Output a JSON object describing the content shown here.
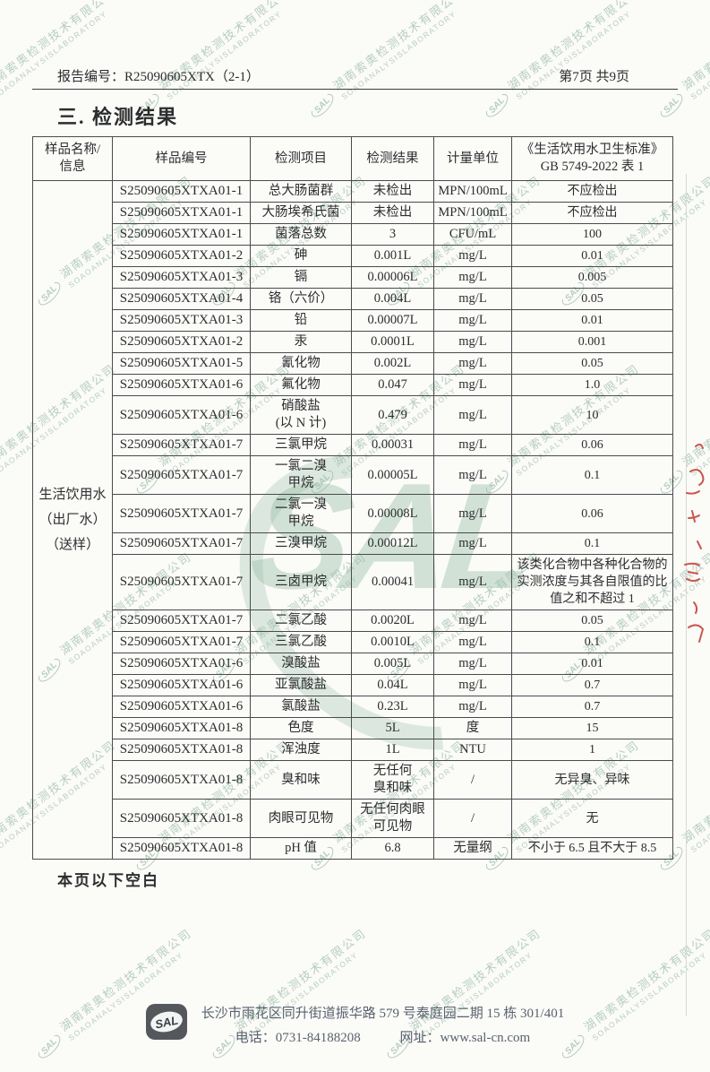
{
  "header": {
    "report_no_label": "报告编号：",
    "report_no": "R25090605XTX（2-1）",
    "page_info": "第7页 共9页"
  },
  "title": "三. 检测结果",
  "table": {
    "headers": [
      "样品名称/\n信息",
      "样品编号",
      "检测项目",
      "检测结果",
      "计量单位",
      "《生活饮用水卫生标准》\nGB 5749-2022 表 1"
    ],
    "sample_name": "生活饮用水\n（出厂水）\n（送样）",
    "rows": [
      {
        "id": "S25090605XTXA01-1",
        "item": "总大肠菌群",
        "result": "未检出",
        "unit": "MPN/100mL",
        "limit": "不应检出"
      },
      {
        "id": "S25090605XTXA01-1",
        "item": "大肠埃希氏菌",
        "result": "未检出",
        "unit": "MPN/100mL",
        "limit": "不应检出"
      },
      {
        "id": "S25090605XTXA01-1",
        "item": "菌落总数",
        "result": "3",
        "unit": "CFU/mL",
        "limit": "100"
      },
      {
        "id": "S25090605XTXA01-2",
        "item": "砷",
        "result": "0.001L",
        "unit": "mg/L",
        "limit": "0.01"
      },
      {
        "id": "S25090605XTXA01-3",
        "item": "镉",
        "result": "0.00006L",
        "unit": "mg/L",
        "limit": "0.005"
      },
      {
        "id": "S25090605XTXA01-4",
        "item": "铬（六价）",
        "result": "0.004L",
        "unit": "mg/L",
        "limit": "0.05"
      },
      {
        "id": "S25090605XTXA01-3",
        "item": "铅",
        "result": "0.00007L",
        "unit": "mg/L",
        "limit": "0.01"
      },
      {
        "id": "S25090605XTXA01-2",
        "item": "汞",
        "result": "0.0001L",
        "unit": "mg/L",
        "limit": "0.001"
      },
      {
        "id": "S25090605XTXA01-5",
        "item": "氰化物",
        "result": "0.002L",
        "unit": "mg/L",
        "limit": "0.05"
      },
      {
        "id": "S25090605XTXA01-6",
        "item": "氟化物",
        "result": "0.047",
        "unit": "mg/L",
        "limit": "1.0"
      },
      {
        "id": "S25090605XTXA01-6",
        "item": "硝酸盐\n(以 N 计)",
        "result": "0.479",
        "unit": "mg/L",
        "limit": "10"
      },
      {
        "id": "S25090605XTXA01-7",
        "item": "三氯甲烷",
        "result": "0.00031",
        "unit": "mg/L",
        "limit": "0.06"
      },
      {
        "id": "S25090605XTXA01-7",
        "item": "一氯二溴\n甲烷",
        "result": "0.00005L",
        "unit": "mg/L",
        "limit": "0.1"
      },
      {
        "id": "S25090605XTXA01-7",
        "item": "二氯一溴\n甲烷",
        "result": "0.00008L",
        "unit": "mg/L",
        "limit": "0.06"
      },
      {
        "id": "S25090605XTXA01-7",
        "item": "三溴甲烷",
        "result": "0.00012L",
        "unit": "mg/L",
        "limit": "0.1"
      },
      {
        "id": "S25090605XTXA01-7",
        "item": "三卤甲烷",
        "result": "0.00041",
        "unit": "mg/L",
        "limit": "该类化合物中各种化合物的实测浓度与其各自限值的比值之和不超过 1"
      },
      {
        "id": "S25090605XTXA01-7",
        "item": "二氯乙酸",
        "result": "0.0020L",
        "unit": "mg/L",
        "limit": "0.05"
      },
      {
        "id": "S25090605XTXA01-7",
        "item": "三氯乙酸",
        "result": "0.0010L",
        "unit": "mg/L",
        "limit": "0.1"
      },
      {
        "id": "S25090605XTXA01-6",
        "item": "溴酸盐",
        "result": "0.005L",
        "unit": "mg/L",
        "limit": "0.01"
      },
      {
        "id": "S25090605XTXA01-6",
        "item": "亚氯酸盐",
        "result": "0.04L",
        "unit": "mg/L",
        "limit": "0.7"
      },
      {
        "id": "S25090605XTXA01-6",
        "item": "氯酸盐",
        "result": "0.23L",
        "unit": "mg/L",
        "limit": "0.7"
      },
      {
        "id": "S25090605XTXA01-8",
        "item": "色度",
        "result": "5L",
        "unit": "度",
        "limit": "15"
      },
      {
        "id": "S25090605XTXA01-8",
        "item": "浑浊度",
        "result": "1L",
        "unit": "NTU",
        "limit": "1"
      },
      {
        "id": "S25090605XTXA01-8",
        "item": "臭和味",
        "result": "无任何\n臭和味",
        "unit": "/",
        "limit": "无异臭、异味"
      },
      {
        "id": "S25090605XTXA01-8",
        "item": "肉眼可见物",
        "result": "无任何肉眼\n可见物",
        "unit": "/",
        "limit": "无"
      },
      {
        "id": "S25090605XTXA01-8",
        "item": "pH 值",
        "result": "6.8",
        "unit": "无量纲",
        "limit": "不小于 6.5 且不大于 8.5"
      }
    ]
  },
  "blank_note": "本页以下空白",
  "watermark": {
    "logo": "SAL",
    "cn": "湖南索奥检测技术有限公司",
    "en": "SOAOANALYSISLABORATORY",
    "color": "#7faa94"
  },
  "footer": {
    "logo": "SAL",
    "address": "长沙市雨花区同升街道振华路 579 号泰庭园二期 15 栋 301/401",
    "phone": "电话：0731-84188208",
    "website": "网址：www.sal-cn.com"
  },
  "decorations": {
    "red_ink_color": "#c4392d"
  }
}
